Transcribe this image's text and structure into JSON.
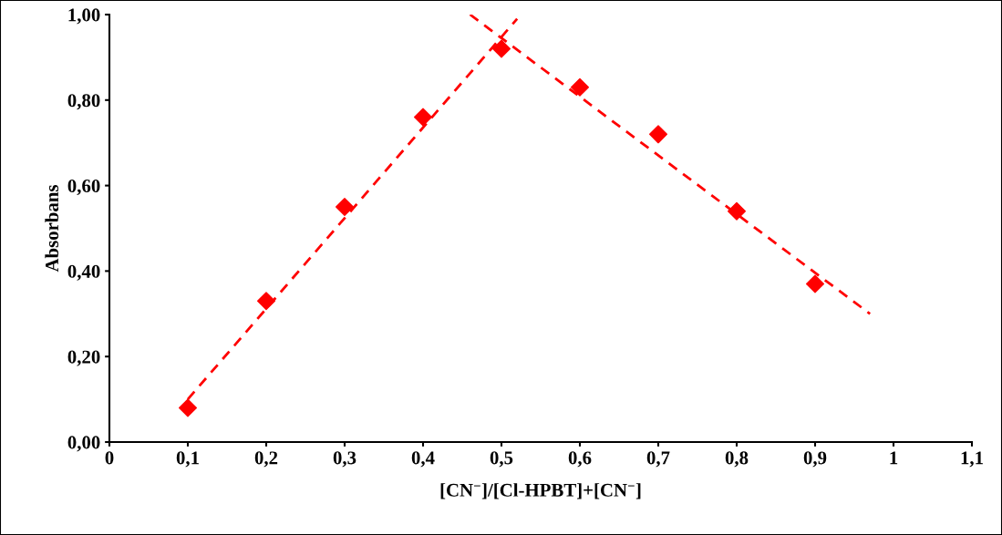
{
  "chart_data": {
    "type": "scatter",
    "xlabel": "[CN$^{−}$]/[Cl-HPBT]+[CN$^{−}$]",
    "ylabel": "Absorbans",
    "x": [
      0.1,
      0.2,
      0.3,
      0.4,
      0.5,
      0.6,
      0.7,
      0.8,
      0.9
    ],
    "series": [
      {
        "color": "#ff0000",
        "marker": "diamond",
        "values": [
          0.08,
          0.33,
          0.55,
          0.76,
          0.92,
          0.83,
          0.72,
          0.54,
          0.37
        ]
      },
      {
        "type": "line",
        "color": "#ff0000",
        "line_style": "dashed",
        "marker": "none",
        "x": [
          0.1,
          0.52
        ],
        "values": [
          0.1,
          0.99
        ]
      },
      {
        "type": "line",
        "color": "#ff0000",
        "line_style": "dashed",
        "marker": "none",
        "x": [
          0.46,
          0.97
        ],
        "values": [
          1.0,
          0.3
        ]
      }
    ],
    "xlim": [
      0,
      1.1
    ],
    "ylim": [
      0,
      1
    ],
    "xticks": [
      0,
      {
        "value": 0.1,
        "label": "0,1"
      },
      {
        "value": 0.2,
        "label": "0,2"
      },
      {
        "value": 0.3,
        "label": "0,3"
      },
      {
        "value": 0.4,
        "label": "0,4"
      },
      {
        "value": 0.5,
        "label": "0,5"
      },
      {
        "value": 0.6,
        "label": "0,6"
      },
      {
        "value": 0.7,
        "label": "0,7"
      },
      {
        "value": 0.8,
        "label": "0,8"
      },
      {
        "value": 0.9,
        "label": "0,9"
      },
      1,
      {
        "value": 1.1,
        "label": "1,1"
      }
    ],
    "yticks": [
      {
        "value": 0,
        "label": "0,00"
      },
      {
        "value": 0.2,
        "label": "0,20"
      },
      {
        "value": 0.4,
        "label": "0,40"
      },
      {
        "value": 0.6,
        "label": "0,60"
      },
      {
        "value": 0.8,
        "label": "0,80"
      },
      {
        "value": 1,
        "label": "1,00"
      }
    ],
    "grid": false,
    "legend": false
  }
}
